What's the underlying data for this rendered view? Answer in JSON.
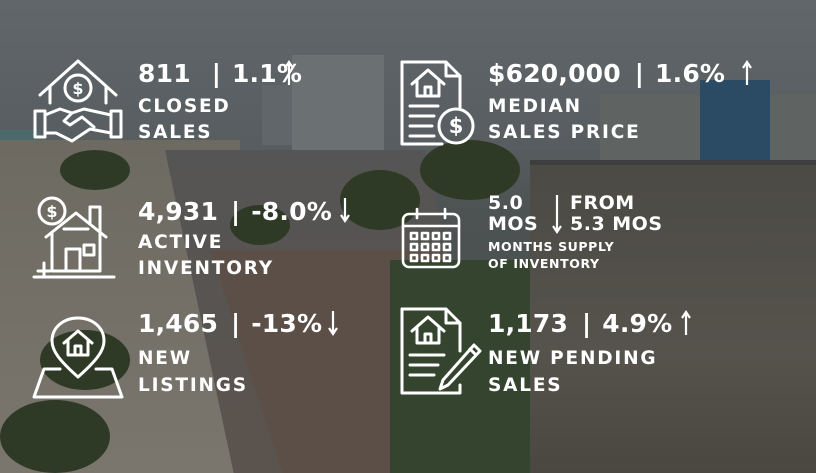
{
  "closed_sales": {
    "value": "811",
    "separator": "|",
    "change": "1.1%",
    "direction": "up",
    "label_line1": "CLOSED",
    "label_line2": "SALES",
    "icon": "house-handshake-icon"
  },
  "median_price": {
    "value": "$620,000",
    "separator": "|",
    "change": "1.6%",
    "direction": "up",
    "label_line1": "MEDIAN",
    "label_line2": "SALES PRICE",
    "icon": "house-document-dollar-icon"
  },
  "active_inventory": {
    "value": "4,931",
    "separator": "|",
    "change": "-8.0%",
    "direction": "down",
    "label_line1": "ACTIVE",
    "label_line2": "INVENTORY",
    "icon": "house-dollar-tag-icon"
  },
  "months_supply": {
    "value_line1": "5.0",
    "value_line2": "MOS",
    "direction": "down",
    "from_line1": "FROM",
    "from_line2": "5.3 MOS",
    "label_line1": "MONTHS SUPPLY",
    "label_line2": "OF INVENTORY",
    "icon": "calendar-icon"
  },
  "new_listings": {
    "value": "1,465",
    "separator": "|",
    "change": "-13%",
    "direction": "down",
    "label_line1": "NEW",
    "label_line2": "LISTINGS",
    "icon": "house-location-pin-icon"
  },
  "new_pending": {
    "value": "1,173",
    "separator": "|",
    "change": "4.9%",
    "direction": "up",
    "label_line1": "NEW PENDING",
    "label_line2": "SALES",
    "icon": "house-document-pen-icon"
  },
  "colors": {
    "text": "#ffffff",
    "overlay": "#4f5556"
  }
}
